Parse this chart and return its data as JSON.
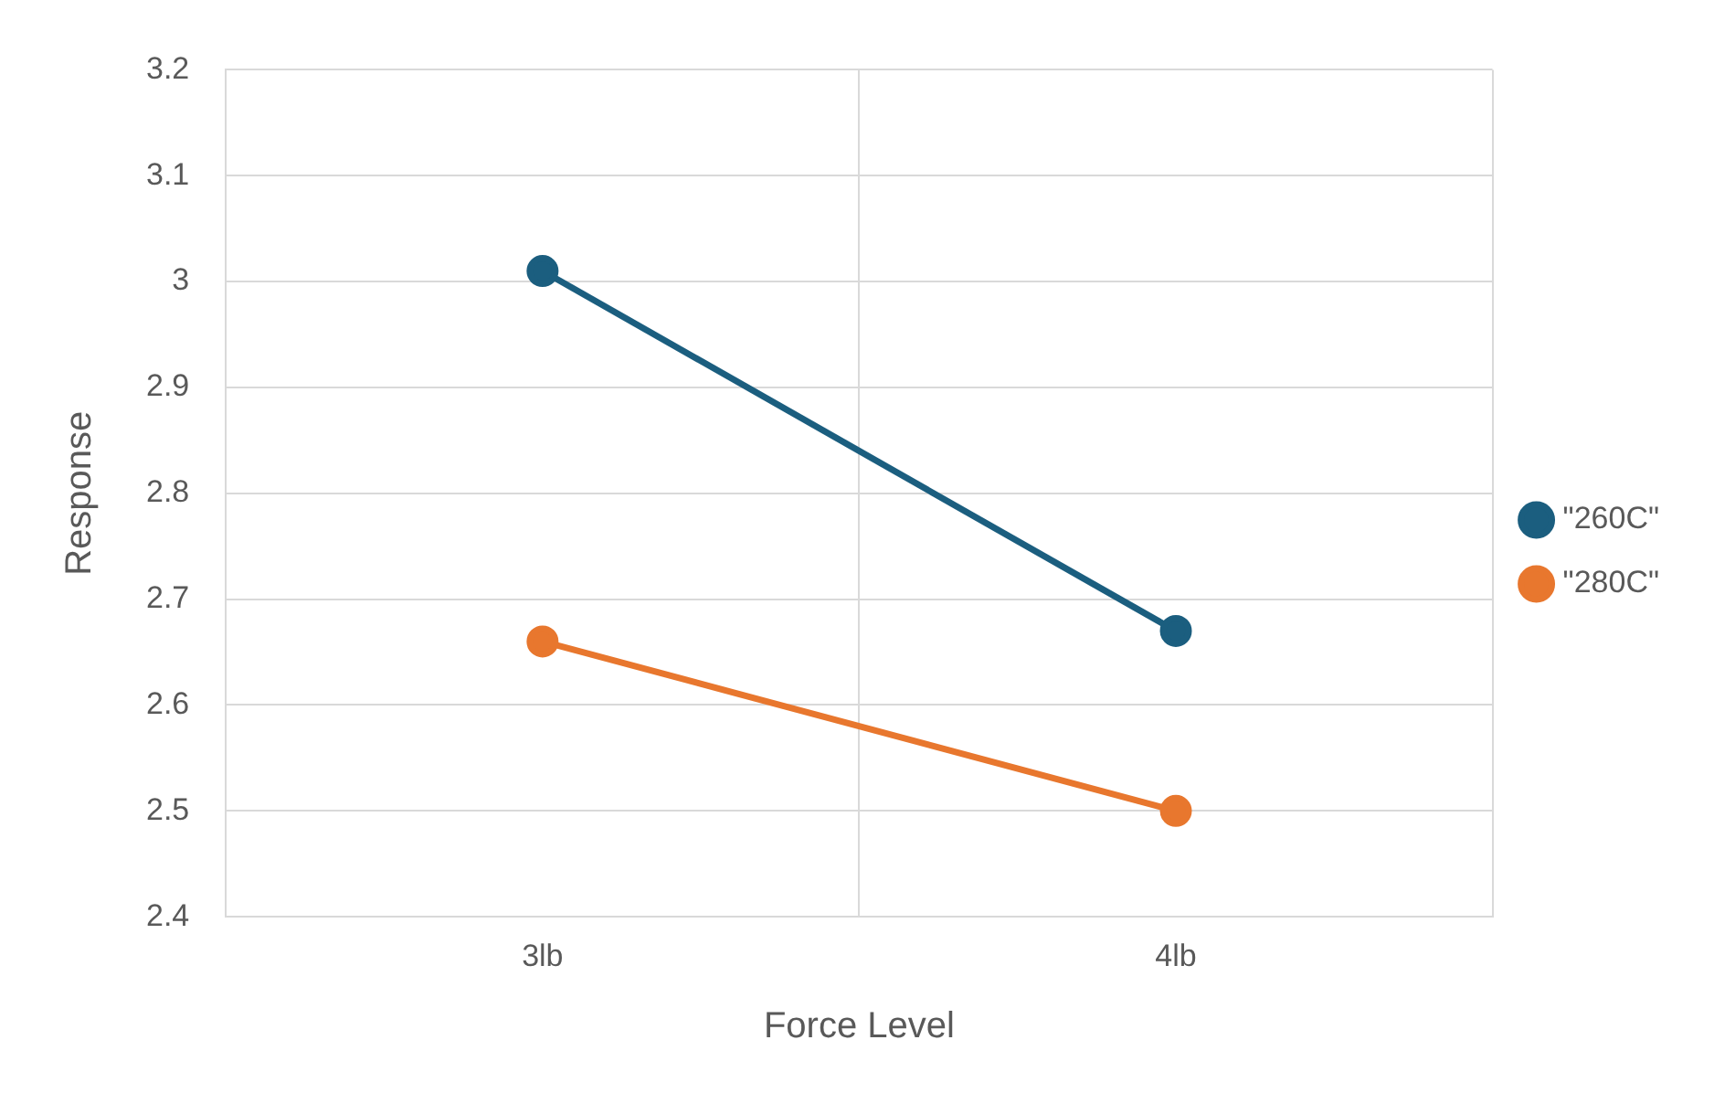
{
  "chart_data": {
    "type": "line",
    "xlabel": "Force Level",
    "ylabel": "Response",
    "categories": [
      "3lb",
      "4lb"
    ],
    "series": [
      {
        "name": "\"260C\"",
        "color": "#1b5e7f",
        "values": [
          3.01,
          2.67
        ]
      },
      {
        "name": "\"280C\"",
        "color": "#e8772e",
        "values": [
          2.66,
          2.5
        ]
      }
    ],
    "ylim": [
      2.4,
      3.2
    ],
    "yticks": [
      2.4,
      2.5,
      2.6,
      2.7,
      2.8,
      2.9,
      3,
      3.1,
      3.2
    ],
    "grid": true,
    "legend": "right",
    "marker": "circle",
    "line_style": "solid"
  }
}
